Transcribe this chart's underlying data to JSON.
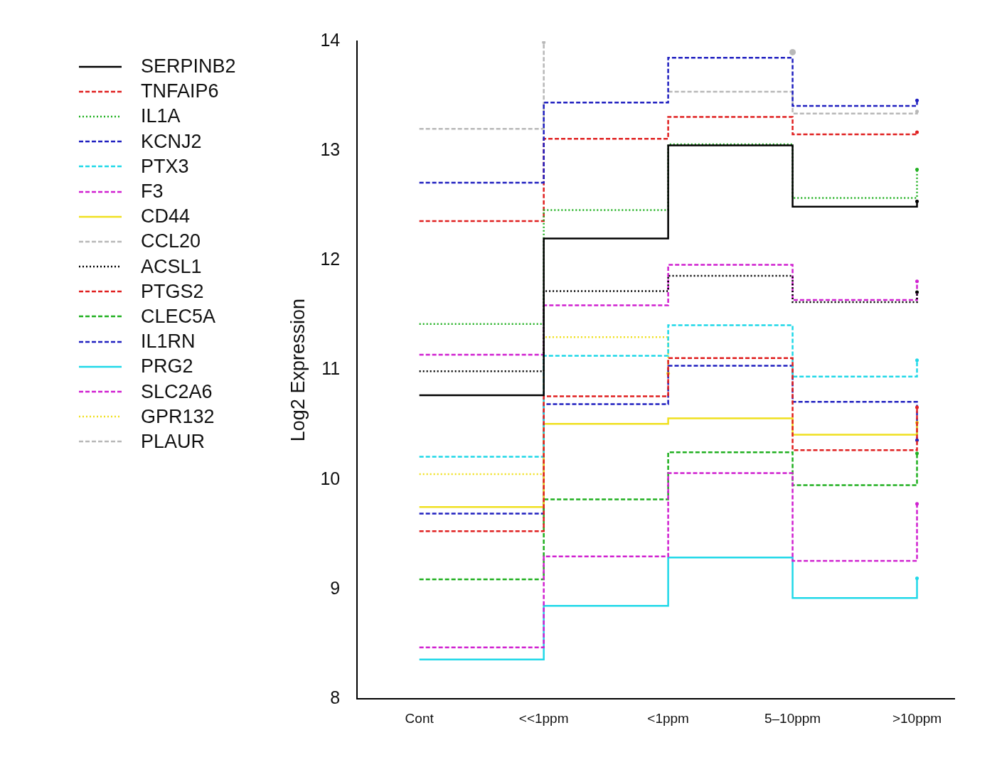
{
  "chart_data": {
    "type": "step",
    "ylabel": "Log2 Expression",
    "categories": [
      "Cont",
      "<<1ppm",
      "<1ppm",
      "5–10ppm",
      ">10ppm"
    ],
    "ylim": [
      8,
      14
    ],
    "yticks": [
      8,
      9,
      10,
      11,
      12,
      13,
      14
    ],
    "grid": false,
    "legend": "left",
    "series": [
      {
        "name": "SERPINB2",
        "color": "#000000",
        "line_style": "solid",
        "values": [
          10.77,
          12.2,
          13.05,
          12.49,
          12.54
        ]
      },
      {
        "name": "TNFAIP6",
        "color": "#e02020",
        "line_style": "dashed",
        "values": [
          9.53,
          10.76,
          11.11,
          10.27,
          10.66
        ]
      },
      {
        "name": "IL1A",
        "color": "#20b020",
        "line_style": "dotted",
        "values": [
          11.42,
          12.46,
          13.06,
          12.57,
          12.83
        ]
      },
      {
        "name": "KCNJ2",
        "color": "#2020c0",
        "line_style": "dashed",
        "values": [
          12.71,
          13.44,
          13.85,
          13.41,
          13.46
        ]
      },
      {
        "name": "PTX3",
        "color": "#20d8e8",
        "line_style": "dashed",
        "values": [
          10.21,
          11.13,
          11.41,
          10.94,
          11.09
        ]
      },
      {
        "name": "F3",
        "color": "#d020d0",
        "line_style": "dashed",
        "values": [
          8.47,
          9.3,
          10.06,
          9.26,
          9.78
        ]
      },
      {
        "name": "CD44",
        "color": "#f0e020",
        "line_style": "solid",
        "values": [
          9.75,
          10.51,
          10.56,
          10.41,
          10.52
        ]
      },
      {
        "name": "CCL20",
        "color": "#b8b8b8",
        "line_style": "dashed",
        "values": [
          13.2,
          13.99,
          null,
          13.9,
          null
        ]
      },
      {
        "name": "ACSL1",
        "color": "#000000",
        "line_style": "dotted",
        "values": [
          10.99,
          11.72,
          11.86,
          11.62,
          11.71
        ]
      },
      {
        "name": "PTGS2",
        "color": "#e02020",
        "line_style": "dashed",
        "values": [
          12.36,
          13.11,
          13.31,
          13.15,
          13.17
        ]
      },
      {
        "name": "CLEC5A",
        "color": "#20b020",
        "line_style": "dashed",
        "values": [
          9.09,
          9.82,
          10.25,
          9.95,
          10.24
        ]
      },
      {
        "name": "IL1RN",
        "color": "#2020c0",
        "line_style": "dashed",
        "values": [
          9.69,
          10.69,
          11.04,
          10.71,
          10.36
        ]
      },
      {
        "name": "PRG2",
        "color": "#20d8e8",
        "line_style": "solid",
        "values": [
          8.36,
          8.85,
          9.29,
          8.92,
          9.1
        ]
      },
      {
        "name": "SLC2A6",
        "color": "#d020d0",
        "line_style": "dashed",
        "values": [
          11.14,
          11.59,
          11.96,
          11.64,
          11.81
        ]
      },
      {
        "name": "GPR132",
        "color": "#f0e020",
        "line_style": "dotted",
        "values": [
          10.05,
          11.3,
          10.97,
          null,
          null
        ]
      },
      {
        "name": "PLAUR",
        "color": "#b8b8b8",
        "line_style": "dashed",
        "values": [
          null,
          null,
          13.54,
          13.34,
          13.36
        ]
      }
    ]
  }
}
